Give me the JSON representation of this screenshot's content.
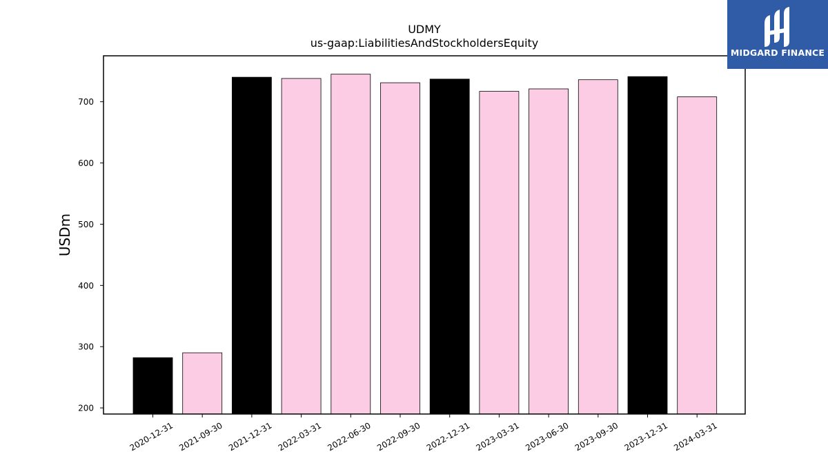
{
  "chart_data": {
    "type": "bar",
    "title": "UDMY",
    "subtitle": "us-gaap:LiabilitiesAndStockholdersEquity",
    "ylabel": "USDm",
    "xlabel": "",
    "ylim": [
      190,
      775
    ],
    "yticks": [
      200,
      300,
      400,
      500,
      600,
      700
    ],
    "categories": [
      "2020-12-31",
      "2021-09-30",
      "2021-12-31",
      "2022-03-31",
      "2022-06-30",
      "2022-09-30",
      "2022-12-31",
      "2023-03-31",
      "2023-06-30",
      "2023-09-30",
      "2023-12-31",
      "2024-03-31"
    ],
    "values": [
      282,
      290,
      740,
      738,
      745,
      731,
      737,
      717,
      721,
      736,
      741,
      708
    ],
    "bar_colors": [
      "#000000",
      "#fbcce4",
      "#000000",
      "#fbcce4",
      "#fbcce4",
      "#fbcce4",
      "#000000",
      "#fbcce4",
      "#fbcce4",
      "#fbcce4",
      "#000000",
      "#fbcce4"
    ],
    "grid": false,
    "legend": "none"
  },
  "logo": {
    "text": "MIDGARD FINANCE",
    "background": "#2f5ba7",
    "icon": "midgard-logo-icon"
  }
}
